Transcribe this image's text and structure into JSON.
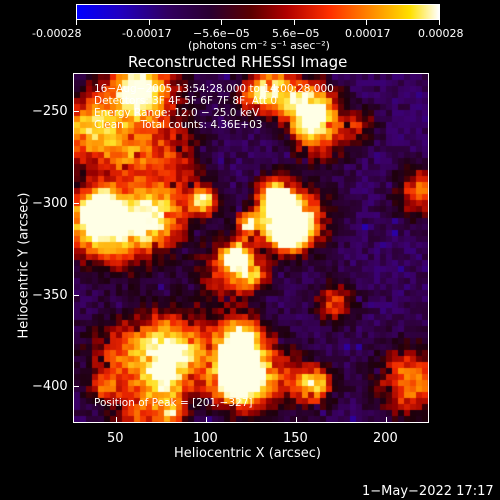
{
  "colorbar": {
    "ticks": [
      "-0.00028",
      "-0.00017",
      "−5.6e−05",
      "5.6e−05",
      "0.00017",
      "0.00028"
    ],
    "units": "(photons cm⁻² s⁻¹ asec⁻²)"
  },
  "title": "Reconstructed RHESSI Image",
  "info": {
    "line1": "16−Aug−2005 13:54:28.000 to 14:00:28.000",
    "line2": "Detectors: 3F 4F 5F 6F 7F 8F, Att 0",
    "line3": "Energy Range: 12.0 − 25.0 keV",
    "line4": "Clean     Total counts: 4.36E+03",
    "peak": "Position of Peak = [201,−327]"
  },
  "axes": {
    "xlabel": "Heliocentric X (arcsec)",
    "ylabel": "Heliocentric Y (arcsec)",
    "xticks": [
      "50",
      "100",
      "150",
      "200"
    ],
    "yticks": [
      "−250",
      "−300",
      "−350",
      "−400"
    ]
  },
  "timestamp": "1−May−2022 17:17"
}
